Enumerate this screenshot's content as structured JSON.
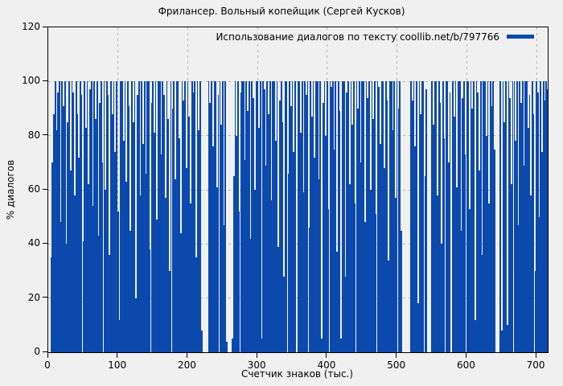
{
  "chart_data": {
    "type": "bar",
    "subtype": "impulses",
    "title": "Фрилансер. Вольный копейщик (Сергей Кусков)",
    "xlabel": "Счетчик знаков (тыс.)",
    "ylabel": "% диалогов",
    "legend": {
      "label": "Использование диалогов по тексту coollib.net/b/797766",
      "position": "top-right"
    },
    "xlim": [
      0,
      716
    ],
    "ylim": [
      0,
      120
    ],
    "x_ticks": [
      0,
      100,
      200,
      300,
      400,
      500,
      600,
      700
    ],
    "y_ticks": [
      0,
      20,
      40,
      60,
      80,
      100,
      120
    ],
    "grid": true,
    "colors": {
      "bar": "#0b49ad",
      "background": "#f0f0f0",
      "grid": "#b2b2b2",
      "axis": "#000000"
    },
    "x_start": 4,
    "x_step": 2,
    "values": [
      35,
      70,
      88,
      100,
      82,
      96,
      100,
      48,
      100,
      91,
      100,
      40,
      85,
      100,
      67,
      100,
      96,
      58,
      100,
      88,
      72,
      100,
      95,
      41,
      100,
      83,
      100,
      62,
      97,
      100,
      54,
      100,
      86,
      100,
      43,
      92,
      100,
      70,
      100,
      60,
      100,
      95,
      36,
      100,
      88,
      100,
      74,
      100,
      52,
      12,
      100,
      100,
      78,
      100,
      63,
      100,
      91,
      45,
      100,
      85,
      100,
      20,
      95,
      100,
      58,
      100,
      77,
      100,
      66,
      100,
      100,
      38,
      92,
      100,
      81,
      100,
      49,
      100,
      100,
      73,
      100,
      95,
      57,
      100,
      86,
      30,
      100,
      90,
      100,
      64,
      100,
      100,
      79,
      44,
      100,
      93,
      100,
      68,
      100,
      87,
      55,
      100,
      96,
      100,
      35,
      100,
      82,
      100,
      8,
      0,
      0,
      0,
      0,
      100,
      92,
      100,
      76,
      100,
      100,
      61,
      95,
      100,
      84,
      100,
      47,
      100,
      4,
      0,
      0,
      0,
      5,
      65,
      100,
      80,
      100,
      52,
      96,
      100,
      100,
      71,
      100,
      89,
      100,
      42,
      100,
      94,
      60,
      100,
      100,
      83,
      100,
      5,
      100,
      97,
      69,
      100,
      88,
      100,
      56,
      100,
      100,
      78,
      100,
      39,
      93,
      100,
      85,
      28,
      100,
      100,
      66,
      100,
      91,
      100,
      74,
      100,
      0,
      100,
      100,
      81,
      100,
      59,
      100,
      95,
      100,
      46,
      100,
      87,
      100,
      72,
      100,
      100,
      64,
      100,
      5,
      92,
      100,
      80,
      100,
      53,
      100,
      98,
      100,
      75,
      100,
      37,
      100,
      89,
      5,
      100,
      100,
      28,
      96,
      100,
      62,
      100,
      84,
      100,
      55,
      100,
      90,
      100,
      70,
      100,
      100,
      48,
      100,
      94,
      100,
      60,
      100,
      86,
      100,
      51,
      100,
      98,
      77,
      100,
      100,
      68,
      100,
      93,
      34,
      100,
      100,
      82,
      100,
      57,
      100,
      90,
      100,
      45,
      0,
      0,
      0,
      0,
      0,
      0,
      100,
      93,
      100,
      76,
      100,
      18,
      100,
      88,
      100,
      100,
      65,
      97,
      0,
      0,
      0,
      100,
      84,
      100,
      100,
      58,
      100,
      92,
      40,
      100,
      79,
      100,
      100,
      70,
      96,
      0,
      100,
      87,
      100,
      61,
      100,
      100,
      45,
      94,
      100,
      73,
      100,
      100,
      53,
      100,
      90,
      100,
      12,
      100,
      96,
      67,
      100,
      36,
      100,
      100,
      80,
      100,
      55,
      100,
      91,
      100,
      75,
      0,
      0,
      0,
      100,
      8,
      100,
      85,
      100,
      10,
      100,
      94,
      62,
      100,
      100,
      78,
      100,
      47,
      100,
      92,
      100,
      69,
      100,
      100,
      83,
      95,
      58,
      100,
      88,
      30,
      100,
      96,
      50,
      100,
      74,
      100,
      93,
      100,
      97
    ]
  }
}
